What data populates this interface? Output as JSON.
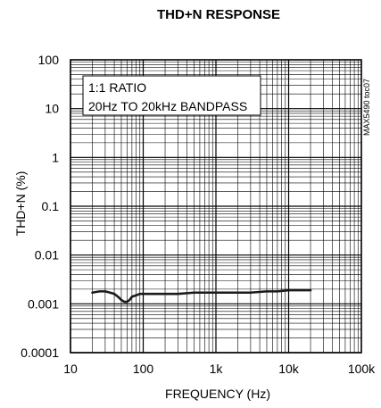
{
  "chart_data": {
    "type": "line",
    "title": "THD+N RESPONSE",
    "xlabel": "FREQUENCY (Hz)",
    "ylabel": "THD+N (%)",
    "x_scale": "log",
    "y_scale": "log",
    "xlim": [
      10,
      100000
    ],
    "ylim": [
      0.0001,
      100
    ],
    "x_ticks": [
      10,
      100,
      1000,
      10000,
      100000
    ],
    "x_tick_labels": [
      "10",
      "100",
      "1k",
      "10k",
      "100k"
    ],
    "y_ticks": [
      100,
      10,
      1,
      0.1,
      0.01,
      0.001,
      0.0001
    ],
    "y_tick_labels": [
      "100",
      "10",
      "1",
      "0.1",
      "0.01",
      "0.001",
      "0.0001"
    ],
    "grid": true,
    "annotations": [
      "1:1 RATIO",
      "20Hz TO 20kHz BANDPASS"
    ],
    "figure_id": "MAX5490 toc07",
    "series": [
      {
        "x": [
          20,
          25,
          30,
          35,
          40,
          45,
          50,
          55,
          60,
          65,
          70,
          80,
          90,
          100,
          150,
          200,
          300,
          500,
          700,
          1000,
          2000,
          3000,
          5000,
          7000,
          10000,
          15000,
          20000
        ],
        "y": [
          0.0017,
          0.0018,
          0.0018,
          0.0017,
          0.0016,
          0.0014,
          0.0012,
          0.0011,
          0.0011,
          0.0012,
          0.0014,
          0.0015,
          0.0016,
          0.0016,
          0.0016,
          0.0016,
          0.0016,
          0.0017,
          0.0017,
          0.0017,
          0.0017,
          0.0017,
          0.0018,
          0.0018,
          0.0019,
          0.0019,
          0.0019
        ]
      }
    ]
  },
  "colors": {
    "line": "#1a1a1a",
    "grid": "#000000",
    "background": "#ffffff"
  }
}
